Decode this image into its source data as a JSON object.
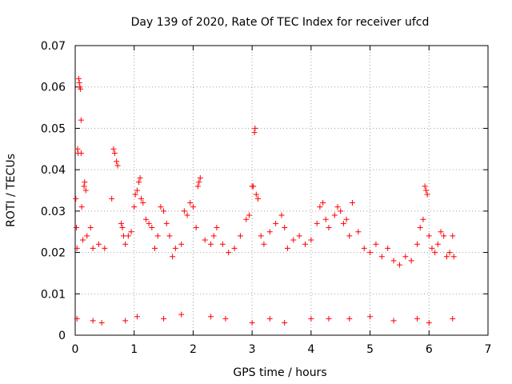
{
  "chart_data": {
    "type": "scatter",
    "title": "Day 139 of 2020, Rate Of TEC Index for receiver ufcd",
    "xlabel": "GPS time / hours",
    "ylabel": "ROTI / TECUs",
    "xlim": [
      0,
      7
    ],
    "ylim": [
      0,
      0.07
    ],
    "x_ticks": [
      "0",
      "1",
      "2",
      "3",
      "4",
      "5",
      "6",
      "7"
    ],
    "y_ticks": [
      "0",
      "0.01",
      "0.02",
      "0.03",
      "0.04",
      "0.05",
      "0.06",
      "0.07"
    ],
    "grid": true,
    "marker": "plus",
    "color": "#ff0000",
    "series": [
      {
        "name": "ROTI",
        "points": [
          [
            0.01,
            0.033
          ],
          [
            0.02,
            0.026
          ],
          [
            0.03,
            0.021
          ],
          [
            0.04,
            0.045
          ],
          [
            0.05,
            0.044
          ],
          [
            0.06,
            0.062
          ],
          [
            0.07,
            0.061
          ],
          [
            0.08,
            0.06
          ],
          [
            0.09,
            0.0595
          ],
          [
            0.1,
            0.052
          ],
          [
            0.1,
            0.044
          ],
          [
            0.11,
            0.031
          ],
          [
            0.13,
            0.023
          ],
          [
            0.15,
            0.036
          ],
          [
            0.16,
            0.037
          ],
          [
            0.18,
            0.035
          ],
          [
            0.2,
            0.024
          ],
          [
            0.26,
            0.026
          ],
          [
            0.3,
            0.021
          ],
          [
            0.4,
            0.022
          ],
          [
            0.5,
            0.021
          ],
          [
            0.62,
            0.033
          ],
          [
            0.65,
            0.045
          ],
          [
            0.67,
            0.044
          ],
          [
            0.7,
            0.042
          ],
          [
            0.72,
            0.041
          ],
          [
            0.78,
            0.027
          ],
          [
            0.8,
            0.026
          ],
          [
            0.82,
            0.024
          ],
          [
            0.85,
            0.022
          ],
          [
            0.9,
            0.024
          ],
          [
            0.95,
            0.025
          ],
          [
            1.0,
            0.031
          ],
          [
            1.02,
            0.034
          ],
          [
            1.05,
            0.035
          ],
          [
            1.08,
            0.037
          ],
          [
            1.1,
            0.038
          ],
          [
            1.12,
            0.033
          ],
          [
            1.15,
            0.032
          ],
          [
            1.2,
            0.028
          ],
          [
            1.25,
            0.027
          ],
          [
            1.3,
            0.026
          ],
          [
            1.35,
            0.021
          ],
          [
            1.4,
            0.024
          ],
          [
            1.45,
            0.031
          ],
          [
            1.5,
            0.03
          ],
          [
            1.55,
            0.027
          ],
          [
            1.6,
            0.024
          ],
          [
            1.65,
            0.019
          ],
          [
            1.7,
            0.021
          ],
          [
            1.8,
            0.022
          ],
          [
            1.85,
            0.03
          ],
          [
            1.9,
            0.029
          ],
          [
            1.95,
            0.032
          ],
          [
            2.0,
            0.031
          ],
          [
            2.05,
            0.026
          ],
          [
            2.08,
            0.036
          ],
          [
            2.1,
            0.037
          ],
          [
            2.12,
            0.038
          ],
          [
            2.2,
            0.023
          ],
          [
            2.3,
            0.022
          ],
          [
            2.35,
            0.024
          ],
          [
            2.4,
            0.026
          ],
          [
            2.5,
            0.022
          ],
          [
            2.6,
            0.02
          ],
          [
            2.7,
            0.021
          ],
          [
            2.8,
            0.024
          ],
          [
            2.9,
            0.028
          ],
          [
            2.95,
            0.029
          ],
          [
            3.0,
            0.036
          ],
          [
            3.02,
            0.036
          ],
          [
            3.04,
            0.049
          ],
          [
            3.05,
            0.05
          ],
          [
            3.07,
            0.034
          ],
          [
            3.1,
            0.033
          ],
          [
            3.15,
            0.024
          ],
          [
            3.2,
            0.022
          ],
          [
            3.3,
            0.025
          ],
          [
            3.4,
            0.027
          ],
          [
            3.5,
            0.029
          ],
          [
            3.55,
            0.026
          ],
          [
            3.6,
            0.021
          ],
          [
            3.7,
            0.023
          ],
          [
            3.8,
            0.024
          ],
          [
            3.9,
            0.022
          ],
          [
            4.0,
            0.023
          ],
          [
            4.1,
            0.027
          ],
          [
            4.15,
            0.031
          ],
          [
            4.2,
            0.032
          ],
          [
            4.25,
            0.028
          ],
          [
            4.3,
            0.026
          ],
          [
            4.4,
            0.029
          ],
          [
            4.45,
            0.031
          ],
          [
            4.5,
            0.03
          ],
          [
            4.55,
            0.027
          ],
          [
            4.6,
            0.028
          ],
          [
            4.65,
            0.024
          ],
          [
            4.7,
            0.032
          ],
          [
            4.8,
            0.025
          ],
          [
            4.9,
            0.021
          ],
          [
            5.0,
            0.02
          ],
          [
            5.1,
            0.022
          ],
          [
            5.2,
            0.019
          ],
          [
            5.3,
            0.021
          ],
          [
            5.4,
            0.018
          ],
          [
            5.5,
            0.017
          ],
          [
            5.6,
            0.019
          ],
          [
            5.7,
            0.018
          ],
          [
            5.8,
            0.022
          ],
          [
            5.85,
            0.026
          ],
          [
            5.9,
            0.028
          ],
          [
            5.93,
            0.036
          ],
          [
            5.95,
            0.035
          ],
          [
            5.97,
            0.034
          ],
          [
            6.0,
            0.024
          ],
          [
            6.05,
            0.021
          ],
          [
            6.1,
            0.02
          ],
          [
            6.15,
            0.022
          ],
          [
            6.2,
            0.025
          ],
          [
            6.25,
            0.024
          ],
          [
            6.3,
            0.019
          ],
          [
            6.35,
            0.02
          ],
          [
            6.4,
            0.024
          ],
          [
            6.42,
            0.019
          ],
          [
            0.03,
            0.004
          ],
          [
            0.3,
            0.0035
          ],
          [
            0.45,
            0.003
          ],
          [
            0.85,
            0.0035
          ],
          [
            1.05,
            0.0045
          ],
          [
            1.5,
            0.004
          ],
          [
            1.8,
            0.005
          ],
          [
            2.3,
            0.0045
          ],
          [
            2.55,
            0.004
          ],
          [
            3.0,
            0.003
          ],
          [
            3.3,
            0.004
          ],
          [
            3.55,
            0.003
          ],
          [
            4.0,
            0.004
          ],
          [
            4.3,
            0.004
          ],
          [
            4.65,
            0.004
          ],
          [
            5.0,
            0.0045
          ],
          [
            5.4,
            0.0035
          ],
          [
            5.8,
            0.004
          ],
          [
            6.0,
            0.003
          ],
          [
            6.4,
            0.004
          ]
        ]
      }
    ]
  }
}
